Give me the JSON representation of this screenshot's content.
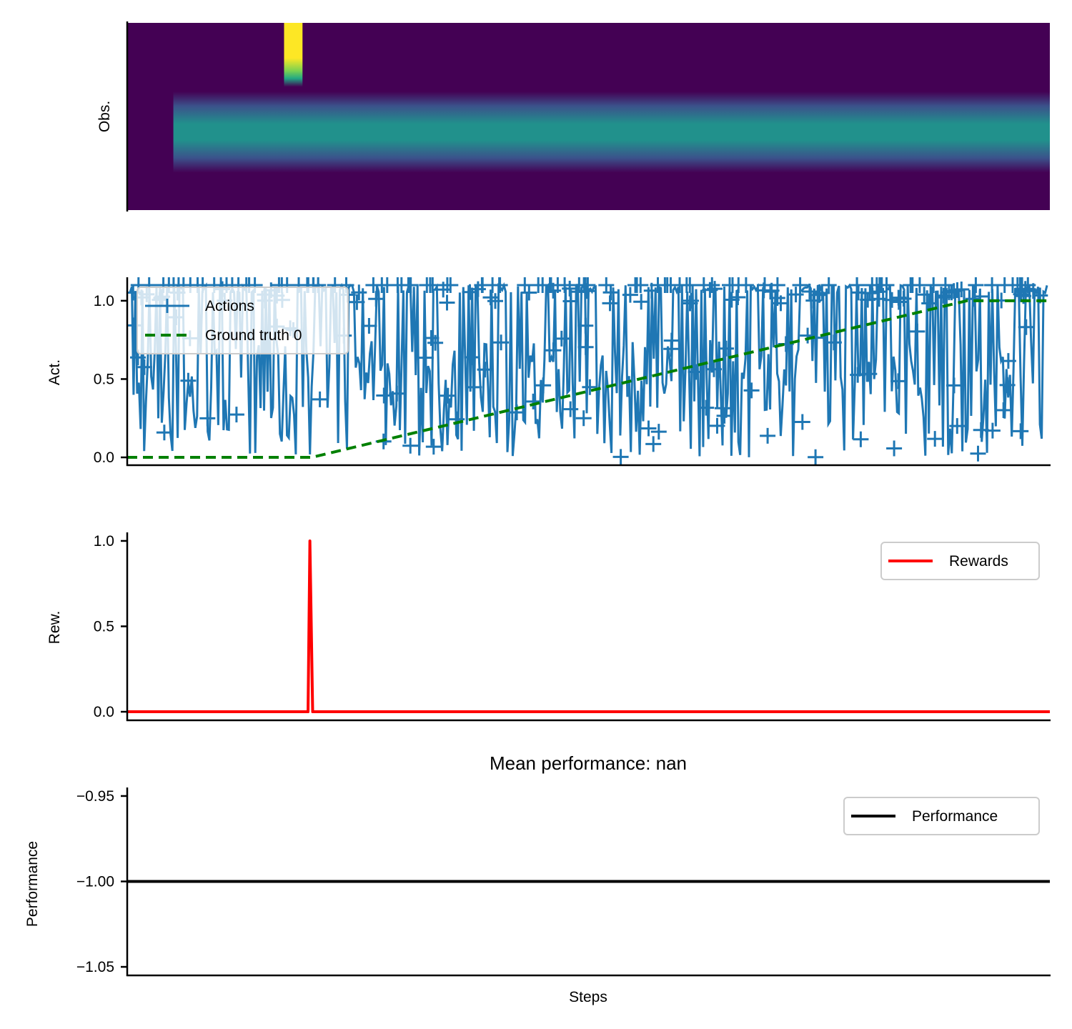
{
  "chart_data": [
    {
      "type": "heatmap",
      "ylabel": "Obs.",
      "xlabel": "",
      "colormap": "viridis",
      "n_steps": 100,
      "rows": 12,
      "features": [
        {
          "name": "fixation",
          "rows": [
            0,
            1
          ],
          "start": 17,
          "end": 19,
          "value": 1.0
        },
        {
          "name": "stimulus",
          "rows_center": 7.0,
          "start": 5,
          "end": 100,
          "value": 0.5
        }
      ]
    },
    {
      "type": "line",
      "ylabel": "Act.",
      "xlabel": "",
      "ylim": [
        -0.05,
        1.15
      ],
      "yticks": [
        0.0,
        0.5,
        1.0
      ],
      "ytick_labels": [
        "0.0",
        "0.5",
        "1.0"
      ],
      "legend_position": "top-left",
      "series": [
        {
          "name": "Actions",
          "color": "#1f77b4",
          "style": "solid-plus",
          "note_values": "random actions in [0, 1.1]"
        },
        {
          "name": "Ground truth 0",
          "color": "#008000",
          "style": "dashed",
          "x": [
            0,
            20,
            91,
            100
          ],
          "values": [
            0.0,
            0.0,
            1.0,
            1.0
          ]
        }
      ]
    },
    {
      "type": "line",
      "ylabel": "Rew.",
      "xlabel": "",
      "ylim": [
        -0.05,
        1.05
      ],
      "yticks": [
        0.0,
        0.5,
        1.0
      ],
      "ytick_labels": [
        "0.0",
        "0.5",
        "1.0"
      ],
      "legend_position": "top-right",
      "series": [
        {
          "name": "Rewards",
          "color": "#ff0000",
          "x": [
            0,
            19.6,
            19.8,
            20.1,
            100
          ],
          "values": [
            0.0,
            0.0,
            1.0,
            0.0,
            0.0
          ]
        }
      ]
    },
    {
      "type": "line",
      "title": "Mean performance: nan",
      "ylabel": "Performance",
      "xlabel": "Steps",
      "ylim": [
        -1.055,
        -0.945
      ],
      "yticks": [
        -0.95,
        -1.0,
        -1.05
      ],
      "ytick_labels": [
        "−0.95",
        "−1.00",
        "−1.05"
      ],
      "legend_position": "top-right",
      "series": [
        {
          "name": "Performance",
          "color": "#000000",
          "x": [
            0,
            100
          ],
          "values": [
            -1.0,
            -1.0
          ]
        }
      ]
    }
  ]
}
